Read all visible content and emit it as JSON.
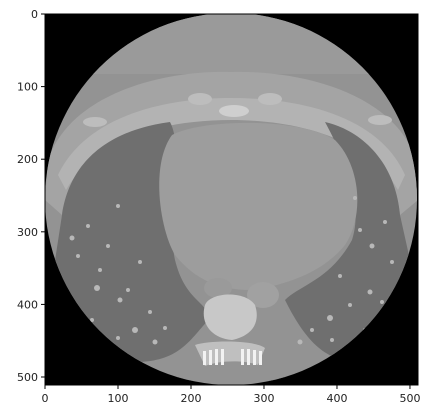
{
  "image": {
    "description_name": "chest-ct-axial-slice",
    "colormap": "gray"
  },
  "axes": {
    "xticks": [
      "0",
      "100",
      "200",
      "300",
      "400",
      "500"
    ],
    "yticks": [
      "0",
      "100",
      "200",
      "300",
      "400",
      "500"
    ],
    "xlim": [
      0,
      511
    ],
    "ylim": [
      511,
      0
    ]
  }
}
